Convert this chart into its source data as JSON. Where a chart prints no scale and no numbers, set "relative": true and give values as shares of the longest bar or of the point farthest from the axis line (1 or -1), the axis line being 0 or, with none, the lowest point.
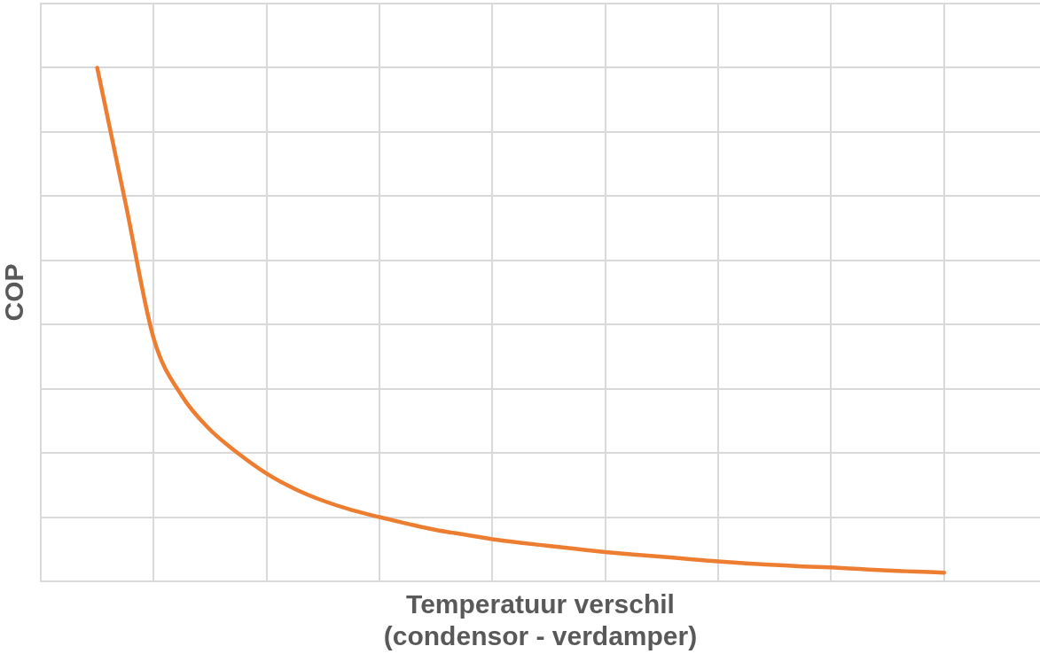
{
  "chart_data": {
    "type": "line",
    "xlabel": "Temperatuur verschil\n(condensor - verdamper)",
    "ylabel": "COP",
    "relative": true,
    "grid": true,
    "categories": [
      null,
      null,
      null,
      null,
      null,
      null,
      null,
      null,
      null,
      null,
      null,
      null,
      null,
      null,
      null,
      null,
      null,
      null,
      null,
      null,
      null,
      null,
      null,
      null,
      null,
      null,
      null,
      null,
      null,
      null,
      null
    ],
    "series": [
      {
        "color": "#ed7d31",
        "values": [
          1.0,
          0.737,
          0.473,
          0.361,
          0.295,
          0.249,
          0.21,
          0.18,
          0.157,
          0.139,
          0.125,
          0.112,
          0.1,
          0.091,
          0.082,
          0.075,
          0.069,
          0.063,
          0.057,
          0.052,
          0.048,
          0.043,
          0.039,
          0.035,
          0.032,
          0.029,
          0.027,
          0.024,
          0.021,
          0.019,
          0.017
        ]
      }
    ]
  }
}
